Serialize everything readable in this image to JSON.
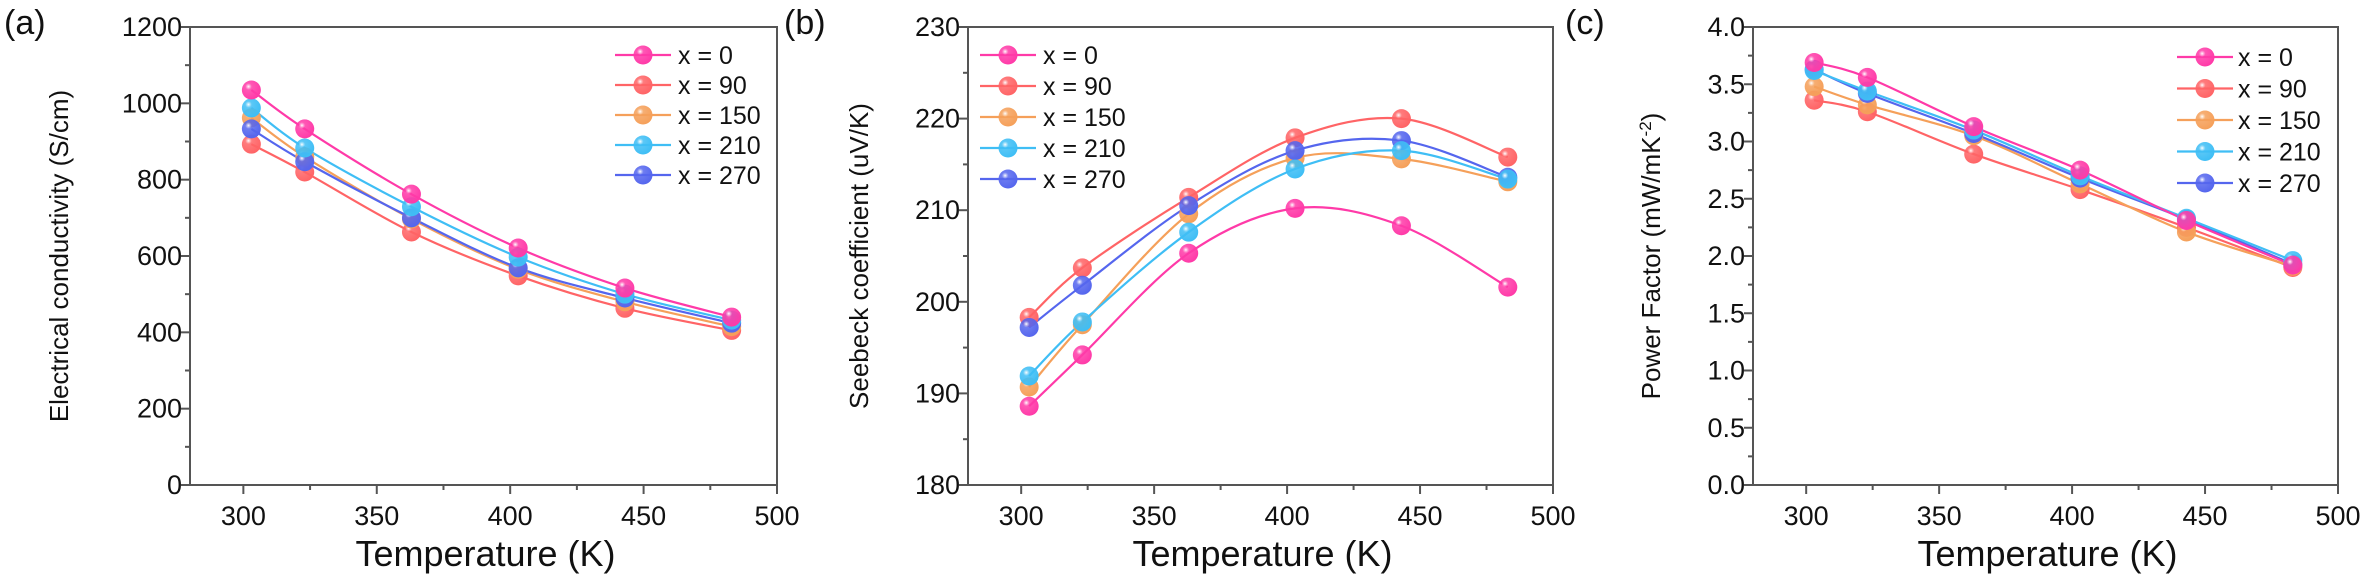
{
  "series_meta": [
    {
      "name": "x = 0",
      "color": "#ff3aa8"
    },
    {
      "name": "x = 90",
      "color": "#ff6466"
    },
    {
      "name": "x = 150",
      "color": "#f5a05a"
    },
    {
      "name": "x = 210",
      "color": "#3fbef5"
    },
    {
      "name": "x = 270",
      "color": "#5566ee"
    }
  ],
  "chart_data": [
    {
      "panel_label": "(a)",
      "type": "line",
      "xlabel": "Temperature  (K)",
      "ylabel": "Electrical conductivity (S/cm)",
      "xlim": [
        280,
        500
      ],
      "ylim": [
        0,
        1200
      ],
      "xticks": [
        300,
        350,
        400,
        450,
        500
      ],
      "yticks": [
        0,
        200,
        400,
        600,
        800,
        1000,
        1200
      ],
      "ytick_labels": [
        "0",
        "200",
        "400",
        "600",
        "800",
        "1000",
        "1200"
      ],
      "legend_position": "top-right",
      "x": [
        303,
        323,
        363,
        403,
        443,
        483
      ],
      "series": [
        {
          "name": "x = 0",
          "values": [
            1035,
            933,
            762,
            621,
            516,
            440
          ]
        },
        {
          "name": "x = 90",
          "values": [
            893,
            820,
            663,
            548,
            463,
            405
          ]
        },
        {
          "name": "x = 150",
          "values": [
            962,
            860,
            697,
            565,
            480,
            415
          ]
        },
        {
          "name": "x = 210",
          "values": [
            988,
            883,
            729,
            597,
            500,
            432
          ]
        },
        {
          "name": "x = 270",
          "values": [
            933,
            847,
            700,
            569,
            490,
            424
          ]
        }
      ]
    },
    {
      "panel_label": "(b)",
      "type": "line",
      "xlabel": "Temperature  (K)",
      "ylabel": "Seebeck coefficient (uV/K)",
      "xlim": [
        280,
        500
      ],
      "ylim": [
        180,
        230
      ],
      "xticks": [
        300,
        350,
        400,
        450,
        500
      ],
      "yticks": [
        180,
        190,
        200,
        210,
        220,
        230
      ],
      "ytick_labels": [
        "180",
        "190",
        "200",
        "210",
        "220",
        "230"
      ],
      "legend_position": "top-left",
      "x": [
        303,
        323,
        363,
        403,
        443,
        483
      ],
      "series": [
        {
          "name": "x = 0",
          "values": [
            188.6,
            194.2,
            205.3,
            210.2,
            208.3,
            201.6
          ]
        },
        {
          "name": "x = 90",
          "values": [
            198.3,
            203.7,
            211.4,
            217.9,
            220.0,
            215.8
          ]
        },
        {
          "name": "x = 150",
          "values": [
            190.7,
            197.5,
            209.6,
            215.7,
            215.6,
            213.1
          ]
        },
        {
          "name": "x = 210",
          "values": [
            191.9,
            197.8,
            207.6,
            214.5,
            216.5,
            213.4
          ]
        },
        {
          "name": "x = 270",
          "values": [
            197.2,
            201.8,
            210.5,
            216.5,
            217.6,
            213.6
          ]
        }
      ]
    },
    {
      "panel_label": "(c)",
      "type": "line",
      "xlabel": "Temperature  (K)",
      "ylabel": "Power Factor (mW/mK",
      "ylabel_sup": "-2",
      "ylabel_end": ")",
      "xlim": [
        280,
        500
      ],
      "ylim": [
        0,
        4
      ],
      "xticks": [
        300,
        350,
        400,
        450,
        500
      ],
      "yticks": [
        0,
        0.5,
        1,
        1.5,
        2,
        2.5,
        3,
        3.5,
        4
      ],
      "ytick_labels": [
        "0.0",
        "0.5",
        "1.0",
        "1.5",
        "2.0",
        "2.5",
        "3.0",
        "3.5",
        "4.0"
      ],
      "legend_position": "top-right",
      "x": [
        303,
        323,
        363,
        403,
        443,
        483
      ],
      "series": [
        {
          "name": "x = 0",
          "values": [
            3.69,
            3.56,
            3.13,
            2.75,
            2.31,
            1.92
          ]
        },
        {
          "name": "x = 90",
          "values": [
            3.36,
            3.26,
            2.89,
            2.58,
            2.25,
            1.9
          ]
        },
        {
          "name": "x = 150",
          "values": [
            3.48,
            3.32,
            3.05,
            2.63,
            2.21,
            1.91
          ]
        },
        {
          "name": "x = 210",
          "values": [
            3.62,
            3.44,
            3.1,
            2.7,
            2.33,
            1.96
          ]
        },
        {
          "name": "x = 270",
          "values": [
            3.63,
            3.42,
            3.07,
            2.68,
            2.32,
            1.93
          ]
        }
      ]
    }
  ]
}
